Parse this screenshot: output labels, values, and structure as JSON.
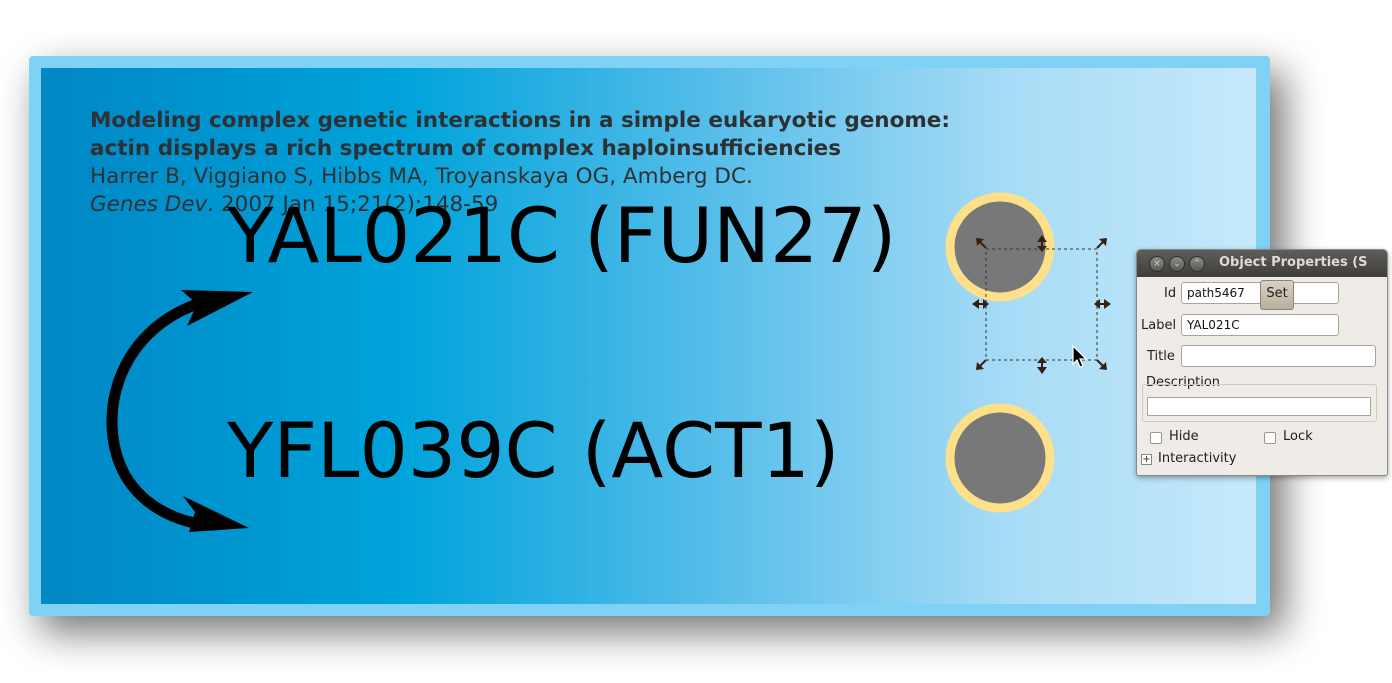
{
  "slide": {
    "citation": {
      "title_line1": "Modeling complex genetic interactions in a simple eukaryotic genome:",
      "title_line2": "actin displays a rich spectrum of complex haploinsufficiencies",
      "authors": "Harrer B, Viggiano S, Hibbs MA, Troyanskaya OG, Amberg DC.",
      "journal": "Genes Dev",
      "ref": ". 2007 Jan 15;21(2):148-59"
    },
    "genes": [
      {
        "label": "YAL021C (FUN27)"
      },
      {
        "label": "YFL039C (ACT1)"
      }
    ],
    "colors": {
      "node_fill": "#787878",
      "node_ring": "#ffe08a",
      "frame": "#7fd1f5"
    }
  },
  "dialog": {
    "title": "Object Properties (S",
    "window_buttons": [
      "close-icon",
      "minimize-icon",
      "maximize-icon"
    ],
    "id_label": "Id",
    "id_value": "path5467",
    "set_label": "Set",
    "label_label": "Label",
    "label_value": "YAL021C",
    "title_label": "Title",
    "title_value": "",
    "description_label": "Description",
    "description_value": "",
    "hide_label": "Hide",
    "hide_checked": false,
    "lock_label": "Lock",
    "lock_checked": false,
    "interactivity_label": "Interactivity"
  }
}
